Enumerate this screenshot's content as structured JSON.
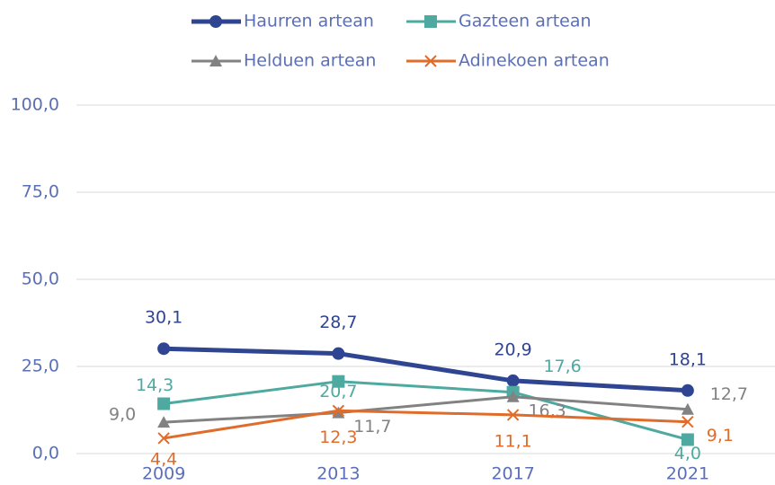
{
  "chart_data": {
    "type": "line",
    "categories": [
      "2009",
      "2013",
      "2017",
      "2021"
    ],
    "series": [
      {
        "name": "Haurren artean",
        "color": "#2f4592",
        "marker": "circle",
        "values": [
          30.1,
          28.7,
          20.9,
          18.1
        ],
        "value_labels": [
          "30,1",
          "28,7",
          "20,9",
          "18,1"
        ]
      },
      {
        "name": "Gazteen artean",
        "color": "#4ea9a0",
        "marker": "square",
        "values": [
          14.3,
          20.7,
          17.6,
          4.0
        ],
        "value_labels": [
          "14,3",
          "20,7",
          "17,6",
          "4,0"
        ]
      },
      {
        "name": "Helduen artean",
        "color": "#828282",
        "marker": "triangle",
        "values": [
          9.0,
          11.7,
          16.3,
          12.7
        ],
        "value_labels": [
          "9,0",
          "11,7",
          "16,3",
          "12,7"
        ]
      },
      {
        "name": "Adinekoen artean",
        "color": "#e06c2c",
        "marker": "x",
        "values": [
          4.4,
          12.3,
          11.1,
          9.1
        ],
        "value_labels": [
          "4,4",
          "12,3",
          "11,1",
          "9,1"
        ]
      }
    ],
    "ylim": [
      0,
      100
    ],
    "yticks": [
      {
        "value": 0,
        "label": "0,0"
      },
      {
        "value": 25,
        "label": "25,0"
      },
      {
        "value": 50,
        "label": "50,0"
      },
      {
        "value": 75,
        "label": "75,0"
      },
      {
        "value": 100,
        "label": "100,0"
      }
    ],
    "grid": true,
    "legend": "top"
  }
}
